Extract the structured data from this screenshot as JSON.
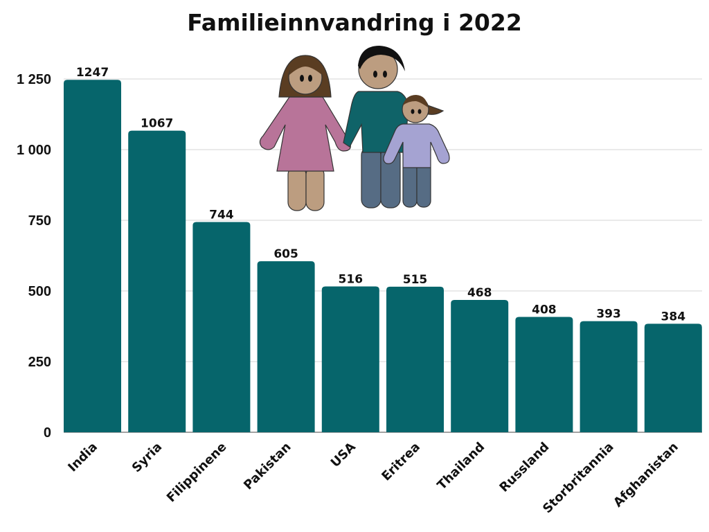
{
  "chart_data": {
    "type": "bar",
    "title": "Familieinnvandring i 2022",
    "xlabel": "",
    "ylabel": "",
    "categories": [
      "India",
      "Syria",
      "Filippinene",
      "Pakistan",
      "USA",
      "Eritrea",
      "Thailand",
      "Russland",
      "Storbritannia",
      "Afghanistan"
    ],
    "values": [
      1247,
      1067,
      744,
      605,
      516,
      515,
      468,
      408,
      393,
      384
    ],
    "ylim": [
      0,
      1250
    ],
    "yticks": [
      0,
      250,
      500,
      750,
      1000,
      1250
    ],
    "ytick_labels": [
      "0",
      "250",
      "500",
      "750",
      "1 000",
      "1 250"
    ],
    "grid": true,
    "bar_color": "#06656b",
    "illustration": "family-icon"
  }
}
